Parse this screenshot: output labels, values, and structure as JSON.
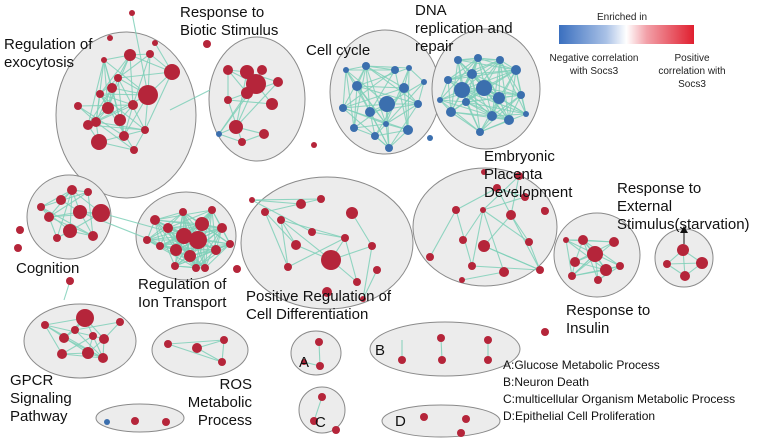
{
  "legend": {
    "title": "Enriched in",
    "negative_label": "Negative correlation with Socs3",
    "positive_label": "Positive correlation with Socs3",
    "negative_color": "#3a6fbf",
    "positive_color": "#e01f2f"
  },
  "colors": {
    "node_positive": "#b5253a",
    "node_negative": "#3b6fae",
    "edge": "#7fd0b8",
    "cluster_fill": "#ececec",
    "cluster_stroke": "#8a8a8a"
  },
  "clusters": [
    {
      "id": "exocytosis",
      "label": "Regulation of exocytosis"
    },
    {
      "id": "biotic",
      "label": "Response to Biotic Stimulus"
    },
    {
      "id": "cellcycle",
      "label": "Cell cycle"
    },
    {
      "id": "dna",
      "label": "DNA replication and repair"
    },
    {
      "id": "cognition",
      "label": "Cognition"
    },
    {
      "id": "iontransport",
      "label": "Regulation of Ion Transport"
    },
    {
      "id": "celldiff",
      "label": "Positive Regulation of Cell Differentiation"
    },
    {
      "id": "placenta",
      "label": "Embryonic Placenta Development"
    },
    {
      "id": "insulin",
      "label": "Response to Insulin"
    },
    {
      "id": "starvation",
      "label": "Response to External Stimulus(starvation)"
    },
    {
      "id": "gpcr",
      "label": "GPCR Signaling Pathway"
    },
    {
      "id": "ros",
      "label": "ROS Metabolic Process"
    },
    {
      "id": "a",
      "label": "A"
    },
    {
      "id": "b",
      "label": "B"
    },
    {
      "id": "c",
      "label": "C"
    },
    {
      "id": "d",
      "label": "D"
    }
  ],
  "key": [
    "A:Glucose Metabolic Process",
    "B:Neuron Death",
    "C:multicellular Organism Metabolic Process",
    "D:Epithelial Cell Proliferation"
  ]
}
